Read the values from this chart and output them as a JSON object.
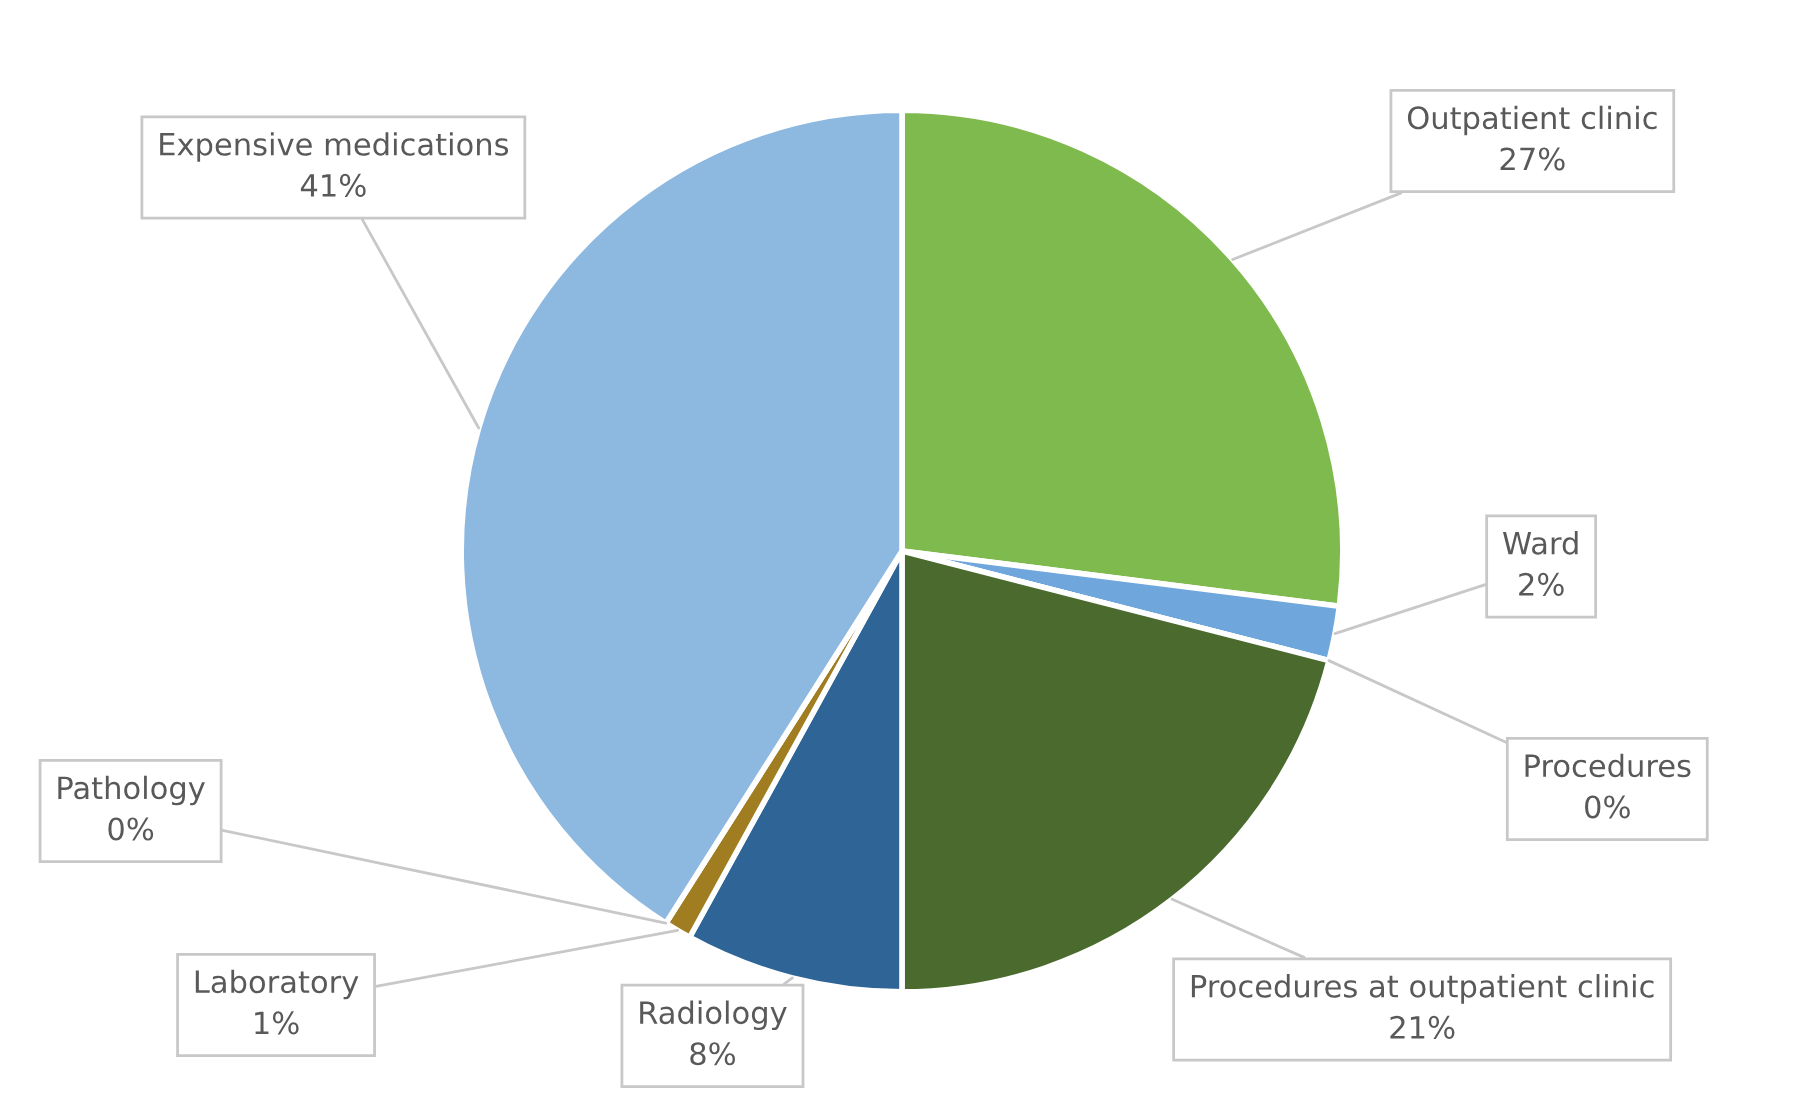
{
  "chart_data": {
    "type": "pie",
    "categories": [
      "Outpatient clinic",
      "Ward",
      "Procedures",
      "Procedures at outpatient clinic",
      "Radiology",
      "Laboratory",
      "Pathology",
      "Expensive medications"
    ],
    "values": [
      27,
      2,
      0,
      21,
      8,
      1,
      0,
      41
    ],
    "colors": [
      "#7fba4f",
      "#6fa6dc",
      "#a5a5a5",
      "#4a6a2e",
      "#2e6496",
      "#a07d20",
      "#7f7f7f",
      "#8db8e0"
    ],
    "value_labels": [
      "27%",
      "2%",
      "0%",
      "21%",
      "8%",
      "1%",
      "0%",
      "41%"
    ]
  }
}
